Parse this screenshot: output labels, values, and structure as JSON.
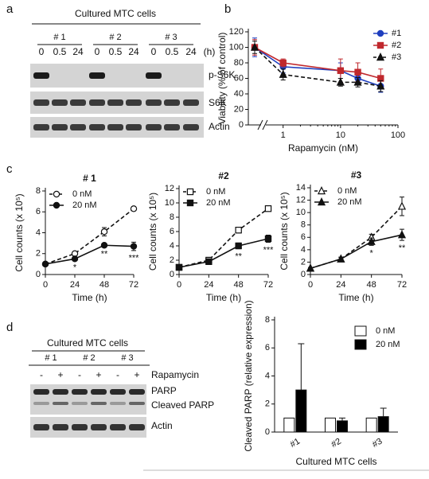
{
  "labels": {
    "a": "a",
    "b": "b",
    "c": "c",
    "d": "d"
  },
  "blot_a": {
    "title": "Cultured MTC cells",
    "groups": [
      "# 1",
      "# 2",
      "# 3"
    ],
    "lanes": [
      "0",
      "0.5",
      "24",
      "0",
      "0.5",
      "24",
      "0",
      "0.5",
      "24"
    ],
    "unit": "(h)",
    "rows": [
      "p-S6K",
      "S6K",
      "Actin"
    ]
  },
  "blot_d": {
    "title": "Cultured MTC cells",
    "groups": [
      "# 1",
      "# 2",
      "# 3"
    ],
    "lanes": [
      "-",
      "+",
      "-",
      "+",
      "-",
      "+"
    ],
    "treatment": "Rapamycin",
    "rows": [
      "PARP",
      "Cleaved PARP",
      "Actin"
    ]
  },
  "chart_data": [
    {
      "type": "line",
      "xlabel": "Rapamycin (nM)",
      "ylabel": "Viability (% of control)",
      "x": [
        0,
        1,
        10,
        20,
        50
      ],
      "xscale": "log",
      "axis_break": true,
      "xlim": [
        0.5,
        100
      ],
      "xticks": [
        1,
        10,
        100
      ],
      "ylim": [
        0,
        120
      ],
      "yticks": [
        0,
        20,
        40,
        60,
        80,
        100,
        120
      ],
      "legend": "upper right",
      "series": [
        {
          "name": "#1",
          "color": "#1f3fbf",
          "marker": "circle",
          "filled": true,
          "dashed": false,
          "values": [
            100,
            75,
            70,
            60,
            50
          ],
          "errors": [
            12,
            8,
            10,
            8,
            8
          ]
        },
        {
          "name": "#2",
          "color": "#c0282d",
          "marker": "square",
          "filled": true,
          "dashed": false,
          "values": [
            100,
            80,
            70,
            68,
            60
          ],
          "errors": [
            10,
            5,
            15,
            12,
            12
          ]
        },
        {
          "name": "#3",
          "color": "#111111",
          "marker": "triangle",
          "filled": true,
          "dashed": true,
          "values": [
            100,
            65,
            55,
            55,
            50
          ],
          "errors": [
            8,
            7,
            5,
            6,
            7
          ]
        }
      ]
    },
    {
      "type": "line",
      "title": "# 1",
      "xlabel": "Time (h)",
      "ylabel": "Cell counts (x 10⁵)",
      "x": [
        0,
        24,
        48,
        72
      ],
      "xlim": [
        0,
        72
      ],
      "xticks": [
        0,
        24,
        48,
        72
      ],
      "ylim": [
        0,
        8
      ],
      "yticks": [
        0,
        2,
        4,
        6,
        8
      ],
      "legend": "upper left",
      "series": [
        {
          "name": "0 nM",
          "color": "#111111",
          "marker": "circle",
          "filled": false,
          "dashed": true,
          "values": [
            1,
            2,
            4.1,
            6.3
          ],
          "errors": [
            0.1,
            0.1,
            0.4,
            0.2
          ]
        },
        {
          "name": "20 nM",
          "color": "#111111",
          "marker": "circle",
          "filled": true,
          "dashed": false,
          "values": [
            1,
            1.5,
            2.8,
            2.7
          ],
          "errors": [
            0.1,
            0.1,
            0.1,
            0.4
          ]
        }
      ],
      "annotations": [
        {
          "text": "*",
          "x": 24
        },
        {
          "text": "**",
          "x": 48
        },
        {
          "text": "***",
          "x": 72
        }
      ]
    },
    {
      "type": "line",
      "title": "#2",
      "xlabel": "Time (h)",
      "ylabel": "Cell counts (x 10⁵)",
      "x": [
        0,
        24,
        48,
        72
      ],
      "xlim": [
        0,
        72
      ],
      "xticks": [
        0,
        24,
        48,
        72
      ],
      "ylim": [
        0,
        12
      ],
      "yticks": [
        0,
        2,
        4,
        6,
        8,
        10,
        12
      ],
      "legend": "upper left",
      "series": [
        {
          "name": "0 nM",
          "color": "#111111",
          "marker": "square",
          "filled": false,
          "dashed": true,
          "values": [
            1,
            2,
            6.2,
            9.2
          ],
          "errors": [
            0.1,
            0.2,
            0.4,
            0.3
          ]
        },
        {
          "name": "20 nM",
          "color": "#111111",
          "marker": "square",
          "filled": true,
          "dashed": false,
          "values": [
            1,
            1.8,
            4,
            5
          ],
          "errors": [
            0.1,
            0.1,
            0.4,
            0.5
          ]
        }
      ],
      "annotations": [
        {
          "text": "**",
          "x": 48
        },
        {
          "text": "***",
          "x": 72
        }
      ]
    },
    {
      "type": "line",
      "title": "#3",
      "xlabel": "Time (h)",
      "ylabel": "Cell counts (x 10⁵)",
      "x": [
        0,
        24,
        48,
        72
      ],
      "xlim": [
        0,
        72
      ],
      "xticks": [
        0,
        24,
        48,
        72
      ],
      "ylim": [
        0,
        14
      ],
      "yticks": [
        0,
        2,
        4,
        6,
        8,
        10,
        12,
        14
      ],
      "legend": "upper left",
      "series": [
        {
          "name": "0 nM",
          "color": "#111111",
          "marker": "triangle",
          "filled": false,
          "dashed": true,
          "values": [
            1,
            2.5,
            6,
            11
          ],
          "errors": [
            0.1,
            0.3,
            0.5,
            1.5
          ]
        },
        {
          "name": "20 nM",
          "color": "#111111",
          "marker": "triangle",
          "filled": true,
          "dashed": false,
          "values": [
            1,
            2.5,
            5.3,
            6.4
          ],
          "errors": [
            0.1,
            0.3,
            0.6,
            0.9
          ]
        }
      ],
      "annotations": [
        {
          "text": "*",
          "x": 48
        },
        {
          "text": "**",
          "x": 72
        }
      ]
    },
    {
      "type": "bar",
      "xlabel": "Cultured MTC cells",
      "ylabel": "Cleaved PARP (relative expression)",
      "categories": [
        "#1",
        "#2",
        "#3"
      ],
      "ylim": [
        0,
        8
      ],
      "yticks": [
        0,
        2,
        4,
        6,
        8
      ],
      "legend": "upper right",
      "series": [
        {
          "name": "0 nM",
          "color": "#ffffff",
          "values": [
            1,
            1,
            1
          ],
          "errors": [
            0,
            0,
            0
          ]
        },
        {
          "name": "20 nM",
          "color": "#000000",
          "values": [
            3,
            0.8,
            1.1
          ],
          "errors": [
            3.3,
            0.2,
            0.6
          ]
        }
      ]
    }
  ]
}
